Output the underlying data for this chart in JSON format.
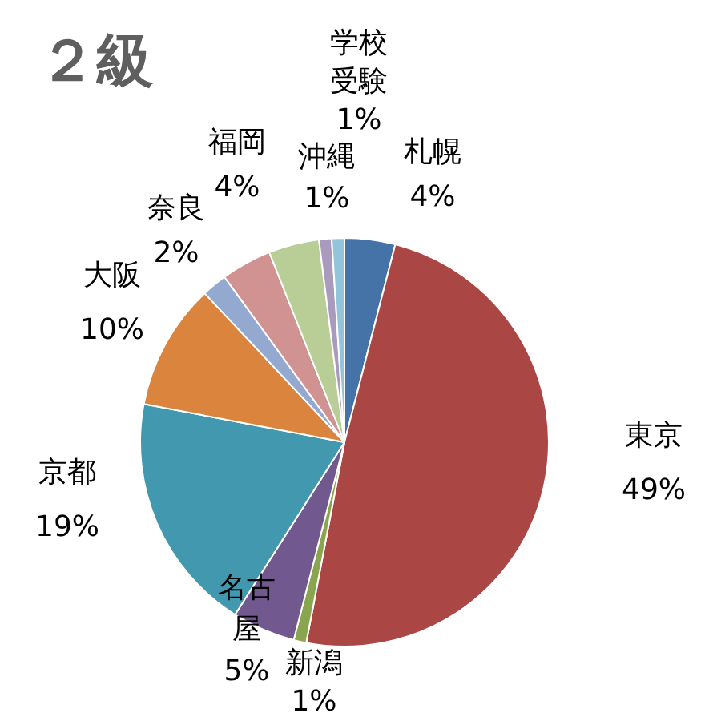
{
  "chart_data": {
    "type": "pie",
    "title": "２級",
    "categories": [
      "札幌",
      "東京",
      "新潟",
      "名古屋",
      "京都",
      "大阪",
      "奈良",
      "福岡",
      null,
      "沖縄",
      "学校受験"
    ],
    "values": [
      4,
      49,
      1,
      5,
      19,
      10,
      2,
      4,
      4,
      1,
      1
    ],
    "value_labels": [
      "4%",
      "49%",
      "1%",
      "5%",
      "19%",
      "10%",
      "2%",
      "4%",
      null,
      "1%",
      "1%"
    ],
    "colors": [
      "#4572a7",
      "#aa4643",
      "#89a54e",
      "#71588f",
      "#4198af",
      "#db843d",
      "#93a9cf",
      "#d19392",
      "#b9cd96",
      "#a99bbd",
      "#92c5dc"
    ],
    "legend": false
  }
}
